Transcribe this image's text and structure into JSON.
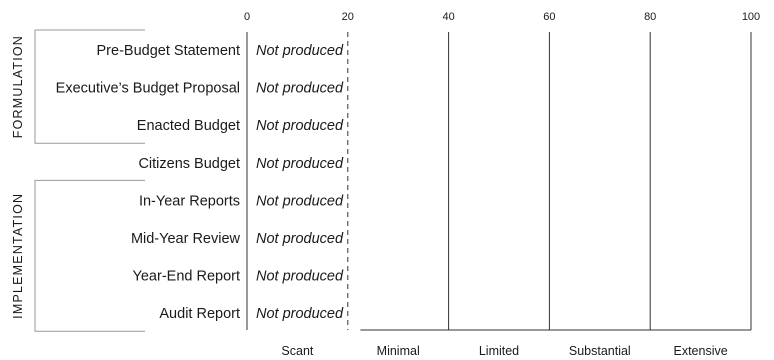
{
  "chart_data": {
    "type": "bar",
    "title": "",
    "xlabel": "",
    "ylabel": "",
    "xlim": [
      0,
      100
    ],
    "x_ticks": [
      0,
      20,
      40,
      60,
      80,
      100
    ],
    "x_tick_labels": [
      "0",
      "20",
      "40",
      "60",
      "80",
      "100"
    ],
    "categories": [
      "Pre-Budget Statement",
      "Executive’s Budget Proposal",
      "Enacted Budget",
      "Citizens Budget",
      "In-Year Reports",
      "Mid-Year Review",
      "Year-End Report",
      "Audit Report"
    ],
    "values": [
      null,
      null,
      null,
      null,
      null,
      null,
      null,
      null
    ],
    "value_labels": [
      "Not produced",
      "Not produced",
      "Not produced",
      "Not produced",
      "Not produced",
      "Not produced",
      "Not produced",
      "Not produced"
    ],
    "bands": [
      {
        "label": "Scant",
        "from": 0,
        "to": 20
      },
      {
        "label": "Minimal",
        "from": 20,
        "to": 40
      },
      {
        "label": "Limited",
        "from": 40,
        "to": 60
      },
      {
        "label": "Substantial",
        "from": 60,
        "to": 80
      },
      {
        "label": "Extensive",
        "from": 80,
        "to": 100
      }
    ],
    "groups": [
      {
        "label": "FORMULATION",
        "first": 0,
        "last": 2
      },
      {
        "label": "IMPLEMENTATION",
        "first": 4,
        "last": 7
      }
    ],
    "grid": true,
    "legend": "none"
  }
}
